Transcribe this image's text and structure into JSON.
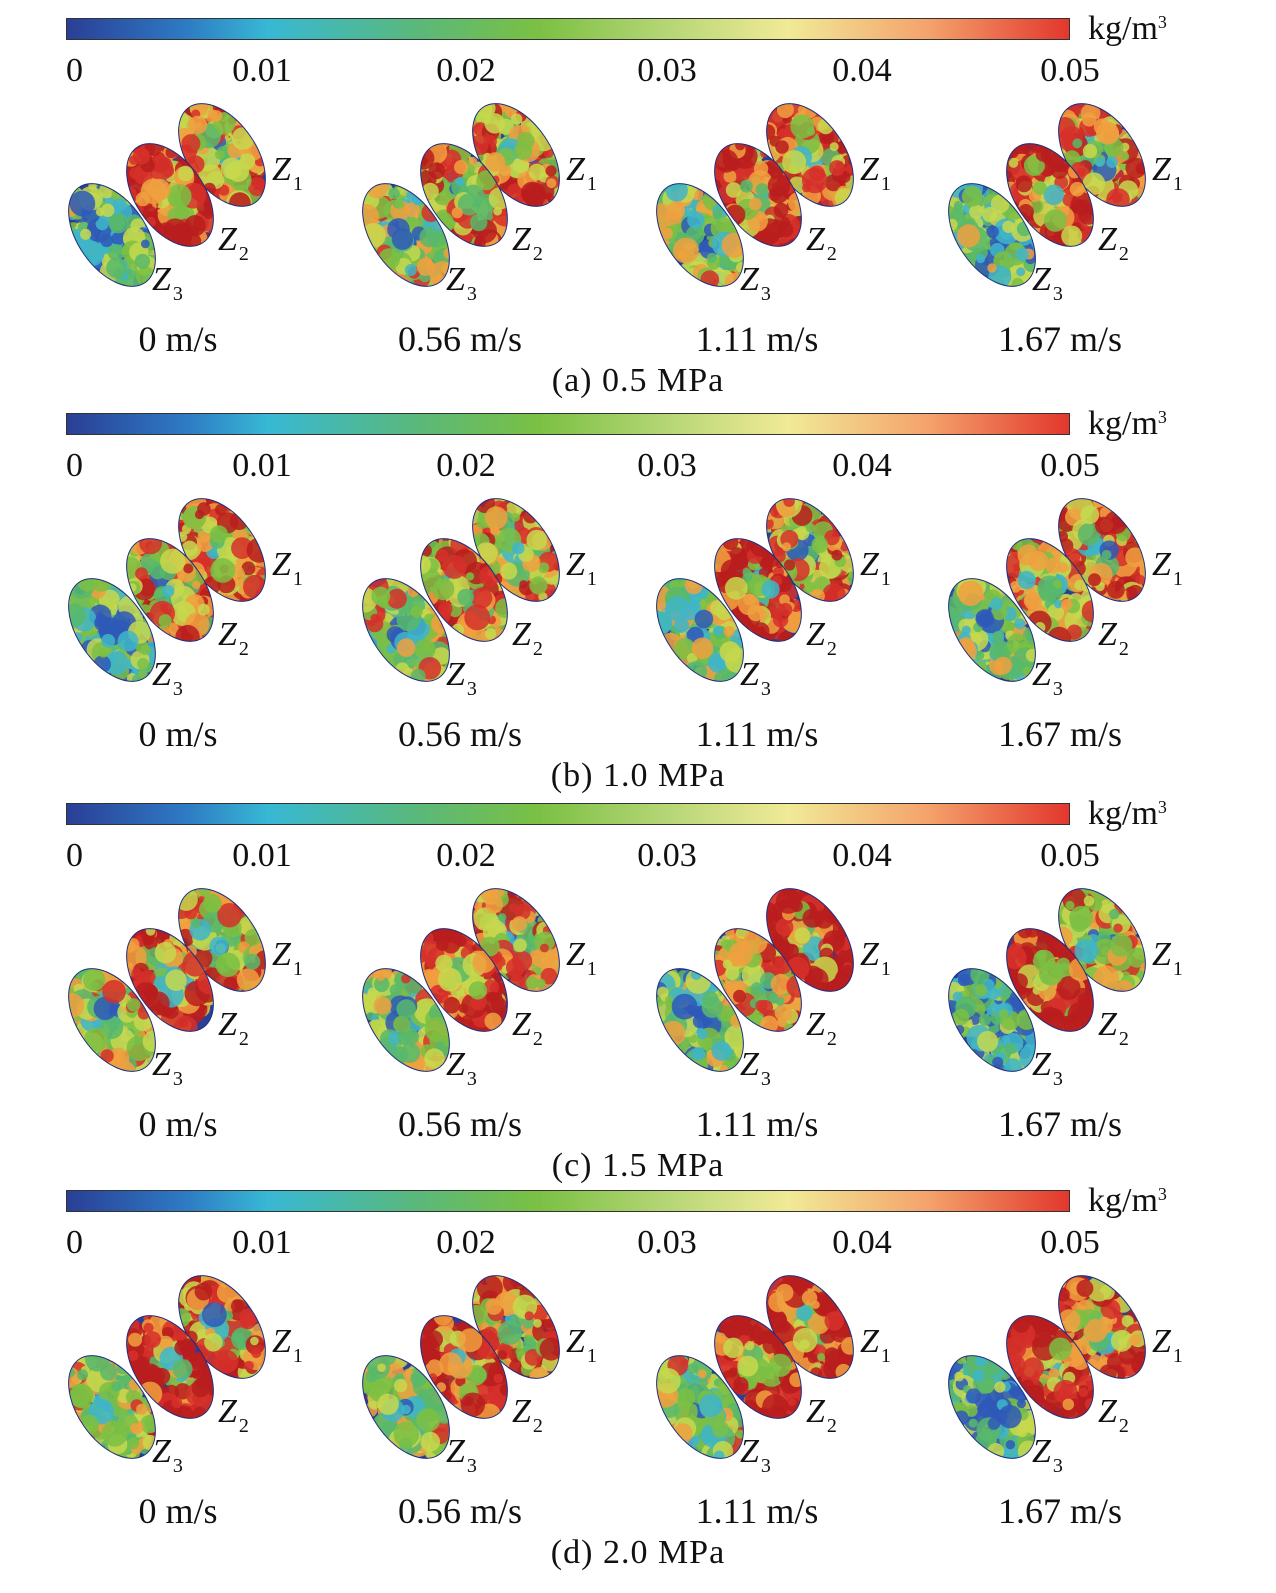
{
  "colorbar": {
    "unit": "kg/m",
    "unit_sup": "3",
    "ticks": [
      "0",
      "0.01",
      "0.02",
      "0.03",
      "0.04",
      "0.05"
    ],
    "colors": [
      "#2a3f96",
      "#2e7bc4",
      "#37b8d4",
      "#5ab87a",
      "#7ac043",
      "#b6d676",
      "#f1ea97",
      "#f4a26b",
      "#e2372d"
    ]
  },
  "zone_labels": [
    "Z",
    "Z",
    "Z"
  ],
  "zone_subs": [
    "1",
    "2",
    "3"
  ],
  "panels": [
    {
      "caption": "(a) 0.5 MPa",
      "speeds": [
        "0 m/s",
        "0.56 m/s",
        "1.11 m/s",
        "1.67 m/s"
      ]
    },
    {
      "caption": "(b) 1.0 MPa",
      "speeds": [
        "0 m/s",
        "0.56 m/s",
        "1.11 m/s",
        "1.67 m/s"
      ]
    },
    {
      "caption": "(c) 1.5 MPa",
      "speeds": [
        "0 m/s",
        "0.56 m/s",
        "1.11 m/s",
        "1.67 m/s"
      ]
    },
    {
      "caption": "(d) 2.0 MPa",
      "speeds": [
        "0 m/s",
        "0.56 m/s",
        "1.11 m/s",
        "1.67 m/s"
      ]
    }
  ]
}
